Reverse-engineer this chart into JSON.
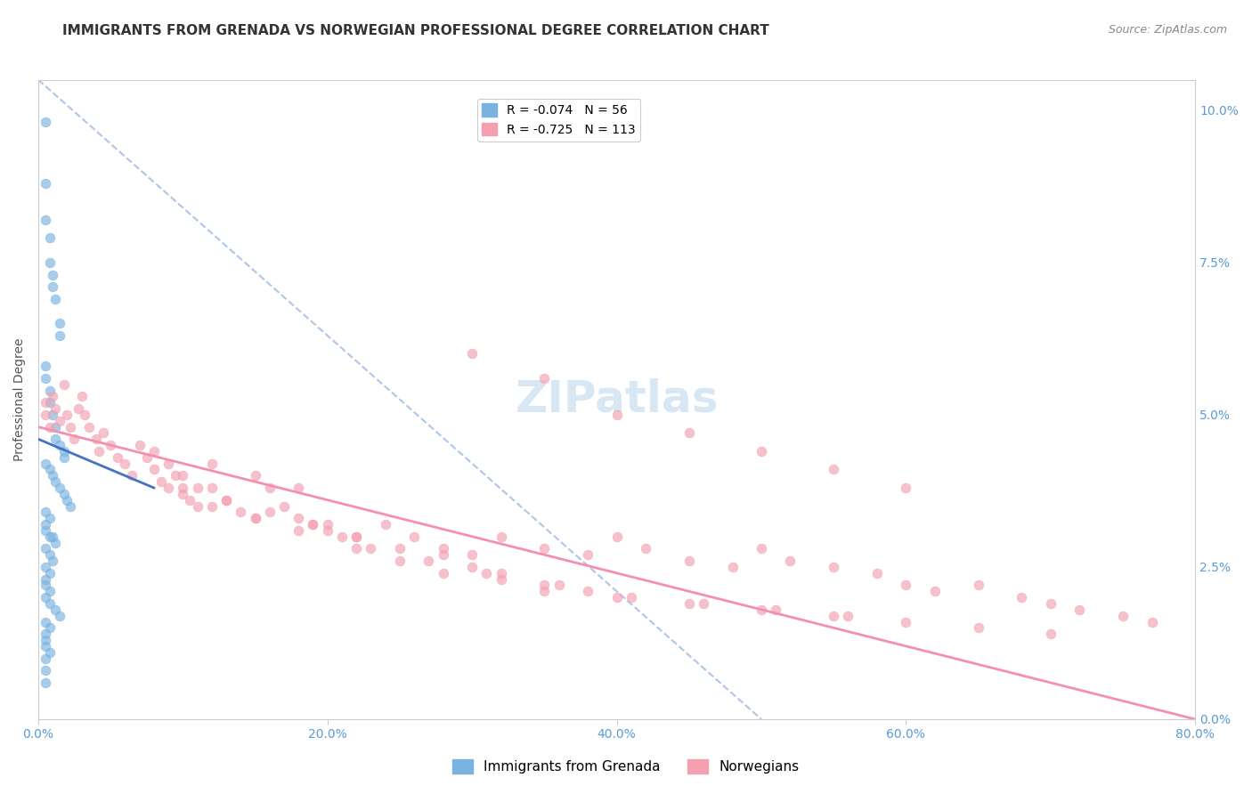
{
  "title": "IMMIGRANTS FROM GRENADA VS NORWEGIAN PROFESSIONAL DEGREE CORRELATION CHART",
  "source": "Source: ZipAtlas.com",
  "xlabel": "",
  "ylabel": "Professional Degree",
  "watermark": "ZIPatlas",
  "right_ytick_labels": [
    "10.0%",
    "7.5%",
    "5.0%",
    "2.5%",
    "0.0%"
  ],
  "right_ytick_values": [
    0.1,
    0.075,
    0.05,
    0.025,
    0.0
  ],
  "xlim": [
    0.0,
    0.8
  ],
  "ylim": [
    0.0,
    0.105
  ],
  "xtick_labels": [
    "0.0%",
    "20.0%",
    "40.0%",
    "60.0%",
    "80.0%"
  ],
  "xtick_values": [
    0.0,
    0.2,
    0.4,
    0.6,
    0.8
  ],
  "legend_entries": [
    {
      "label": "R = -0.074   N = 56",
      "color": "#7ab3e0"
    },
    {
      "label": "R = -0.725   N = 113",
      "color": "#f4a0b0"
    }
  ],
  "legend_labels": [
    "Immigrants from Grenada",
    "Norwegians"
  ],
  "blue_scatter_x": [
    0.005,
    0.005,
    0.005,
    0.008,
    0.008,
    0.01,
    0.01,
    0.012,
    0.015,
    0.015,
    0.005,
    0.005,
    0.008,
    0.008,
    0.01,
    0.012,
    0.012,
    0.015,
    0.018,
    0.018,
    0.005,
    0.008,
    0.01,
    0.012,
    0.015,
    0.018,
    0.02,
    0.022,
    0.005,
    0.008,
    0.005,
    0.005,
    0.008,
    0.01,
    0.012,
    0.005,
    0.008,
    0.01,
    0.005,
    0.008,
    0.005,
    0.005,
    0.008,
    0.005,
    0.008,
    0.012,
    0.015,
    0.005,
    0.008,
    0.005,
    0.005,
    0.005,
    0.008,
    0.005,
    0.005,
    0.005
  ],
  "blue_scatter_y": [
    0.098,
    0.088,
    0.082,
    0.079,
    0.075,
    0.073,
    0.071,
    0.069,
    0.065,
    0.063,
    0.058,
    0.056,
    0.054,
    0.052,
    0.05,
    0.048,
    0.046,
    0.045,
    0.044,
    0.043,
    0.042,
    0.041,
    0.04,
    0.039,
    0.038,
    0.037,
    0.036,
    0.035,
    0.034,
    0.033,
    0.032,
    0.031,
    0.03,
    0.03,
    0.029,
    0.028,
    0.027,
    0.026,
    0.025,
    0.024,
    0.023,
    0.022,
    0.021,
    0.02,
    0.019,
    0.018,
    0.017,
    0.016,
    0.015,
    0.014,
    0.013,
    0.012,
    0.011,
    0.01,
    0.008,
    0.006
  ],
  "pink_scatter_x": [
    0.005,
    0.005,
    0.008,
    0.01,
    0.012,
    0.015,
    0.018,
    0.02,
    0.022,
    0.025,
    0.028,
    0.03,
    0.032,
    0.035,
    0.04,
    0.042,
    0.045,
    0.05,
    0.055,
    0.06,
    0.065,
    0.07,
    0.075,
    0.08,
    0.085,
    0.09,
    0.095,
    0.1,
    0.105,
    0.11,
    0.12,
    0.13,
    0.14,
    0.15,
    0.16,
    0.17,
    0.18,
    0.19,
    0.2,
    0.22,
    0.24,
    0.26,
    0.28,
    0.3,
    0.32,
    0.35,
    0.38,
    0.4,
    0.42,
    0.45,
    0.48,
    0.5,
    0.52,
    0.55,
    0.58,
    0.6,
    0.62,
    0.65,
    0.68,
    0.7,
    0.72,
    0.75,
    0.77,
    0.3,
    0.32,
    0.35,
    0.38,
    0.12,
    0.15,
    0.18,
    0.22,
    0.25,
    0.28,
    0.32,
    0.35,
    0.4,
    0.45,
    0.5,
    0.55,
    0.6,
    0.65,
    0.7,
    0.3,
    0.35,
    0.4,
    0.45,
    0.5,
    0.55,
    0.6,
    0.1,
    0.12,
    0.15,
    0.18,
    0.2,
    0.22,
    0.25,
    0.28,
    0.08,
    0.09,
    0.1,
    0.11,
    0.13,
    0.16,
    0.19,
    0.21,
    0.23,
    0.27,
    0.31,
    0.36,
    0.41,
    0.46,
    0.51,
    0.56
  ],
  "pink_scatter_y": [
    0.052,
    0.05,
    0.048,
    0.053,
    0.051,
    0.049,
    0.055,
    0.05,
    0.048,
    0.046,
    0.051,
    0.053,
    0.05,
    0.048,
    0.046,
    0.044,
    0.047,
    0.045,
    0.043,
    0.042,
    0.04,
    0.045,
    0.043,
    0.041,
    0.039,
    0.038,
    0.04,
    0.038,
    0.036,
    0.035,
    0.038,
    0.036,
    0.034,
    0.033,
    0.038,
    0.035,
    0.033,
    0.032,
    0.031,
    0.03,
    0.032,
    0.03,
    0.028,
    0.027,
    0.03,
    0.028,
    0.027,
    0.03,
    0.028,
    0.026,
    0.025,
    0.028,
    0.026,
    0.025,
    0.024,
    0.022,
    0.021,
    0.022,
    0.02,
    0.019,
    0.018,
    0.017,
    0.016,
    0.025,
    0.024,
    0.022,
    0.021,
    0.042,
    0.04,
    0.038,
    0.028,
    0.026,
    0.024,
    0.023,
    0.021,
    0.02,
    0.019,
    0.018,
    0.017,
    0.016,
    0.015,
    0.014,
    0.06,
    0.056,
    0.05,
    0.047,
    0.044,
    0.041,
    0.038,
    0.037,
    0.035,
    0.033,
    0.031,
    0.032,
    0.03,
    0.028,
    0.027,
    0.044,
    0.042,
    0.04,
    0.038,
    0.036,
    0.034,
    0.032,
    0.03,
    0.028,
    0.026,
    0.024,
    0.022,
    0.02,
    0.019,
    0.018,
    0.017
  ],
  "blue_line_x": [
    0.0,
    0.08
  ],
  "blue_line_y": [
    0.046,
    0.038
  ],
  "pink_line_x": [
    0.0,
    0.8
  ],
  "pink_line_y": [
    0.048,
    0.0
  ],
  "dashed_line_x": [
    0.0,
    0.5
  ],
  "dashed_line_y": [
    0.105,
    0.0
  ],
  "scatter_alpha": 0.65,
  "scatter_size": 60,
  "blue_color": "#7ab3e0",
  "pink_color": "#f4a0b0",
  "blue_line_color": "#4472c4",
  "pink_line_color": "#f48fb1",
  "dashed_line_color": "#aec6e8",
  "axis_color": "#5b9bd5",
  "grid_color": "#c0d8f0",
  "title_fontsize": 11,
  "source_fontsize": 9,
  "watermark_fontsize": 36,
  "watermark_color": "#c8ddf0",
  "label_fontsize": 10,
  "tick_fontsize": 10
}
